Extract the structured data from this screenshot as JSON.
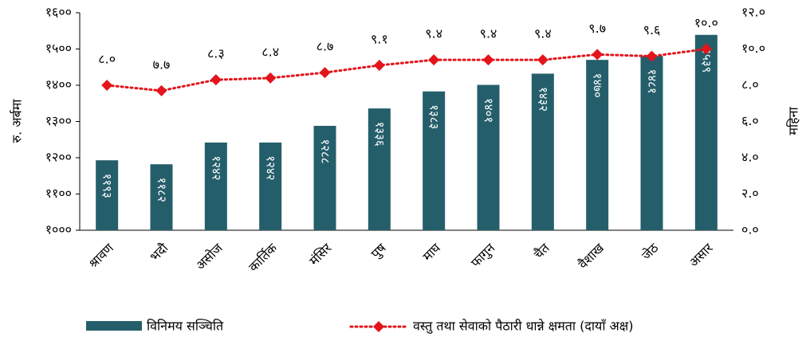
{
  "chart_data": {
    "type": "bar_line",
    "y_label": "रु. अर्बमा",
    "y2_label": "महिना",
    "categories": [
      "श्रावण",
      "भदौ",
      "असोज",
      "कार्तिक",
      "मंसिर",
      "पुष",
      "माघ",
      "फागुन",
      "चैत",
      "वैशाख",
      "जेठ",
      "असार"
    ],
    "series": [
      {
        "name": "विनिमय सञ्चिति",
        "type": "bar",
        "color": "#255e6b",
        "values": [
          1193,
          1182,
          1242,
          1242,
          1288,
          1336,
          1383,
          1401,
          1432,
          1470,
          1481,
          1539
        ],
        "value_labels": [
          "११९३",
          "११८२",
          "१२४२",
          "१२४२",
          "१२८८",
          "१३३६",
          "१३८३",
          "१४०१",
          "१४३२",
          "१४७०",
          "१४८१",
          "१५३९"
        ]
      },
      {
        "name": "वस्तु तथा सेवाको पैठारी धान्ने क्षमता (दायाँ अक्ष)",
        "type": "line",
        "axis": "y2",
        "color": "#e3141b",
        "values": [
          8.0,
          7.7,
          8.3,
          8.4,
          8.7,
          9.1,
          9.4,
          9.4,
          9.4,
          9.7,
          9.6,
          10.0
        ],
        "value_labels": [
          "८.०",
          "७.७",
          "८.३",
          "८.४",
          "८.७",
          "९.१",
          "९.४",
          "९.४",
          "९.४",
          "९.७",
          "९.६",
          "१०.०"
        ]
      }
    ],
    "ylim": [
      1000,
      1600
    ],
    "yticks": [
      {
        "value": 1000,
        "label": "१०००"
      },
      {
        "value": 1100,
        "label": "११००"
      },
      {
        "value": 1200,
        "label": "१२००"
      },
      {
        "value": 1300,
        "label": "१३००"
      },
      {
        "value": 1400,
        "label": "१४००"
      },
      {
        "value": 1500,
        "label": "१५००"
      },
      {
        "value": 1600,
        "label": "१६००"
      }
    ],
    "y2lim": [
      0,
      12
    ],
    "y2ticks": [
      {
        "value": 0,
        "label": "०.०"
      },
      {
        "value": 2,
        "label": "२.०"
      },
      {
        "value": 4,
        "label": "४.०"
      },
      {
        "value": 6,
        "label": "६.०"
      },
      {
        "value": 8,
        "label": "८.०"
      },
      {
        "value": 10,
        "label": "१०.०"
      },
      {
        "value": 12,
        "label": "१२.०"
      }
    ],
    "legend": "bottom"
  }
}
